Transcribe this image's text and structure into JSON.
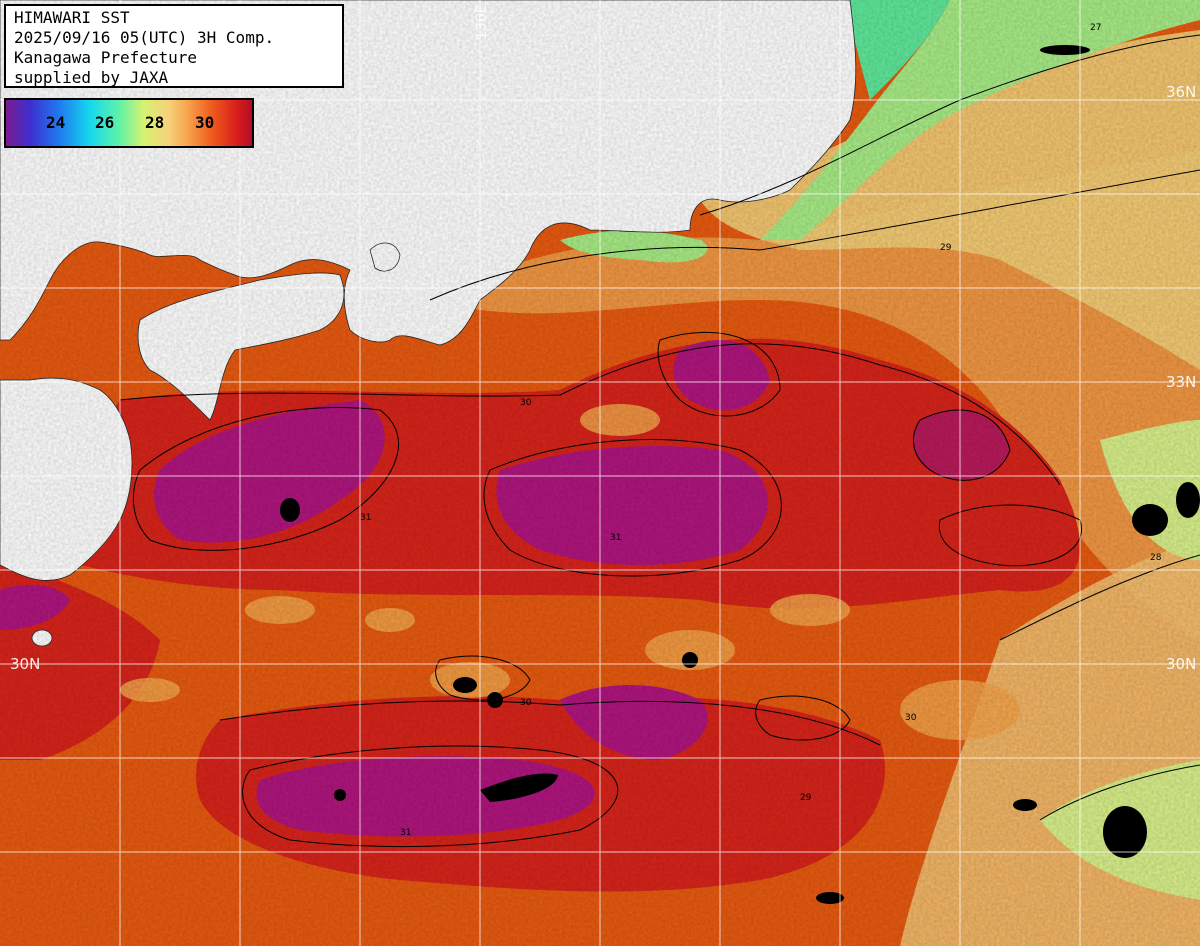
{
  "info": {
    "line1": "HIMAWARI SST",
    "line2": "2025/09/16 05(UTC) 3H Comp.",
    "line3": "Kanagawa Prefecture",
    "line4": "supplied by JAXA"
  },
  "legend": {
    "ticks": [
      "24",
      "26",
      "28",
      "30"
    ]
  },
  "lat_labels": {
    "n36": "36N",
    "n33": "33N",
    "n30_right": "30N",
    "n30_left": "30N"
  },
  "lon_labels": {
    "e136": "136E"
  },
  "contour_labels": [
    "27",
    "28",
    "29",
    "30",
    "31"
  ],
  "colors": {
    "land": "#ffffff",
    "sst_31": "#b0157e",
    "sst_30": "#d8241a",
    "sst_29": "#ec5a12",
    "sst_28": "#f6a040",
    "sst_27": "#f4d878",
    "sst_26": "#b6ec84",
    "sst_25": "#5fe89a",
    "cloud": "#000000",
    "grid": "#ffffff",
    "contour": "#000000"
  }
}
